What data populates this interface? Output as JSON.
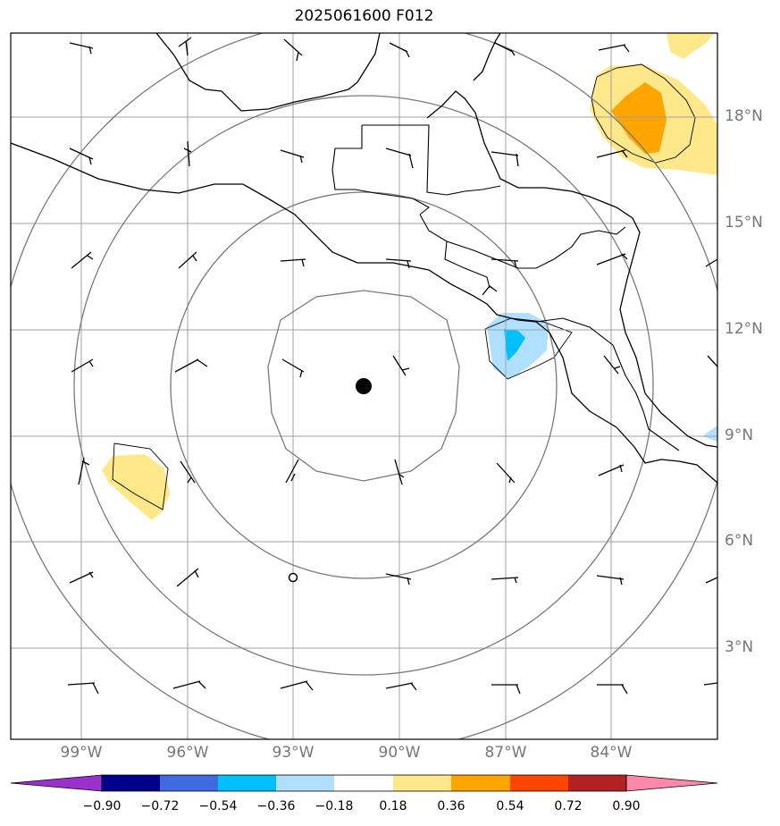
{
  "title": "2025061600 F012",
  "map": {
    "projection": "lat-lon",
    "lon_range": [
      -101,
      -81
    ],
    "lat_range": [
      0.5,
      20.5
    ],
    "gridlines": true,
    "lat_labels": [
      "18°N",
      "15°N",
      "12°N",
      "9°N",
      "6°N",
      "3°N"
    ],
    "lon_labels": [
      "99°W",
      "96°W",
      "93°W",
      "90°W",
      "87°W",
      "84°W"
    ],
    "center_marker": {
      "lon": -91,
      "lat": 10.3
    },
    "secondary_marker": {
      "lon": -93,
      "lat": 4.9
    },
    "range_rings": "concentric circles around center marker",
    "wind_barbs": "regular grid of wind barbs",
    "shaded_field_colors": {
      "positive_weak": "#ffe88a",
      "positive_moderate": "#ffa500",
      "negative_weak": "#b0e0ff",
      "negative_moderate": "#00bfff"
    }
  },
  "colorbar": {
    "ticks": [
      "−0.90",
      "−0.72",
      "−0.54",
      "−0.36",
      "−0.18",
      "0.18",
      "0.36",
      "0.54",
      "0.72",
      "0.90"
    ],
    "colors": [
      "#9932cc",
      "#00008b",
      "#4169e1",
      "#00bfff",
      "#b0e0ff",
      "#ffffff",
      "#ffe88a",
      "#ffa500",
      "#ff4500",
      "#b22222",
      "#ff88aa"
    ],
    "extend": "both"
  }
}
